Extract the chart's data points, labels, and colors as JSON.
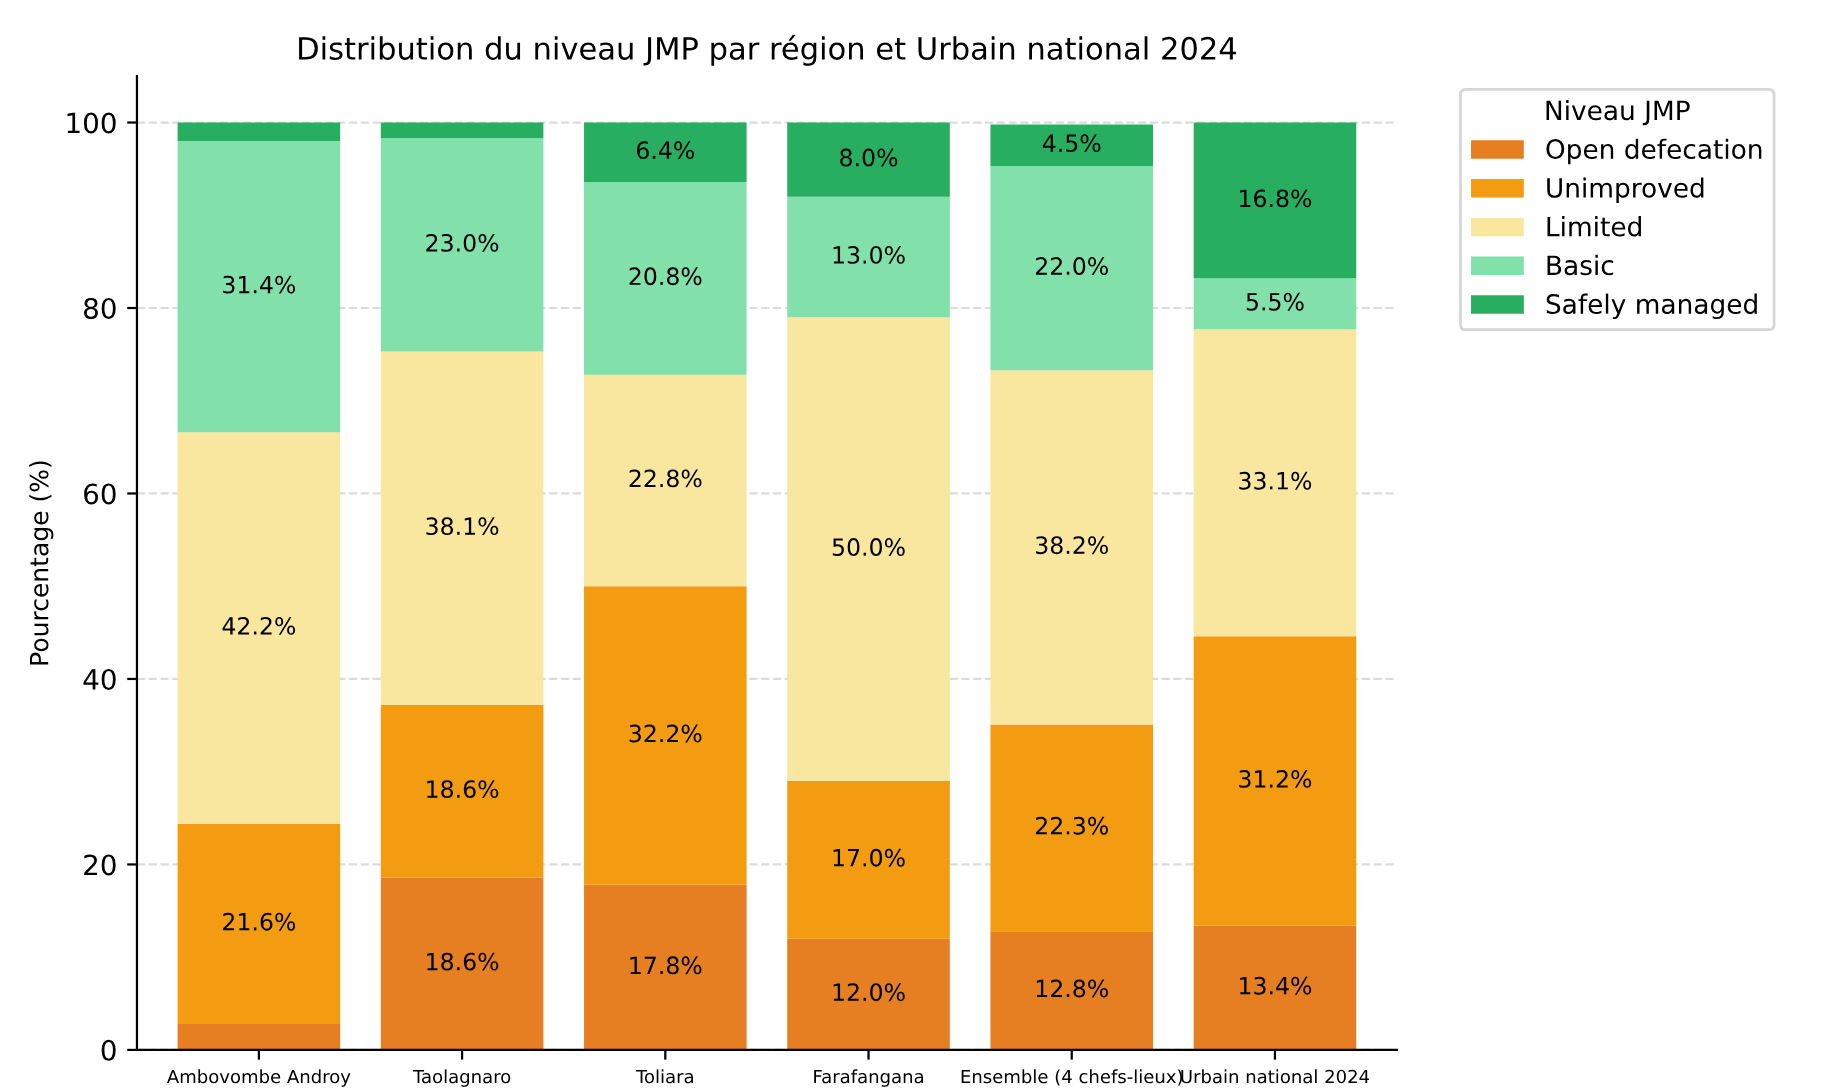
{
  "chart_data": {
    "type": "bar",
    "stacked": true,
    "title": "Distribution du niveau JMP par région et Urbain national 2024",
    "ylabel": "Pourcentage (%)",
    "legend_title": "Niveau JMP",
    "legend": "top right",
    "categories": [
      "Ambovombe Androy",
      "Taolagnaro",
      "Toliara",
      "Farafangana",
      "Ensemble (4 chefs-lieux)",
      "Urbain national 2024"
    ],
    "series": [
      {
        "name": "Open defecation",
        "color": "#e67e22",
        "values": [
          2.8,
          18.6,
          17.8,
          12.0,
          12.8,
          13.4
        ],
        "value_labels": [
          null,
          "18.6%",
          "17.8%",
          "12.0%",
          "12.8%",
          "13.4%"
        ]
      },
      {
        "name": "Unimproved",
        "color": "#f39c12",
        "values": [
          21.6,
          18.6,
          32.2,
          17.0,
          22.3,
          31.2
        ],
        "value_labels": [
          "21.6%",
          "18.6%",
          "32.2%",
          "17.0%",
          "22.3%",
          "31.2%"
        ]
      },
      {
        "name": "Limited",
        "color": "#f9e79f",
        "values": [
          42.2,
          38.1,
          22.8,
          50.0,
          38.2,
          33.1
        ],
        "value_labels": [
          "42.2%",
          "38.1%",
          "22.8%",
          "50.0%",
          "38.2%",
          "33.1%"
        ]
      },
      {
        "name": "Basic",
        "color": "#82e0aa",
        "values": [
          31.4,
          23.0,
          20.8,
          13.0,
          22.0,
          5.5
        ],
        "value_labels": [
          "31.4%",
          "23.0%",
          "20.8%",
          "13.0%",
          "22.0%",
          "5.5%"
        ]
      },
      {
        "name": "Safely managed",
        "color": "#27ae60",
        "values": [
          2.0,
          1.7,
          6.4,
          8.0,
          4.5,
          16.8
        ],
        "value_labels": [
          null,
          null,
          "6.4%",
          "8.0%",
          "4.5%",
          "16.8%"
        ]
      }
    ],
    "ylim": [
      0,
      105
    ],
    "yticks": [
      0,
      20,
      40,
      60,
      80,
      100
    ],
    "grid": "y"
  }
}
